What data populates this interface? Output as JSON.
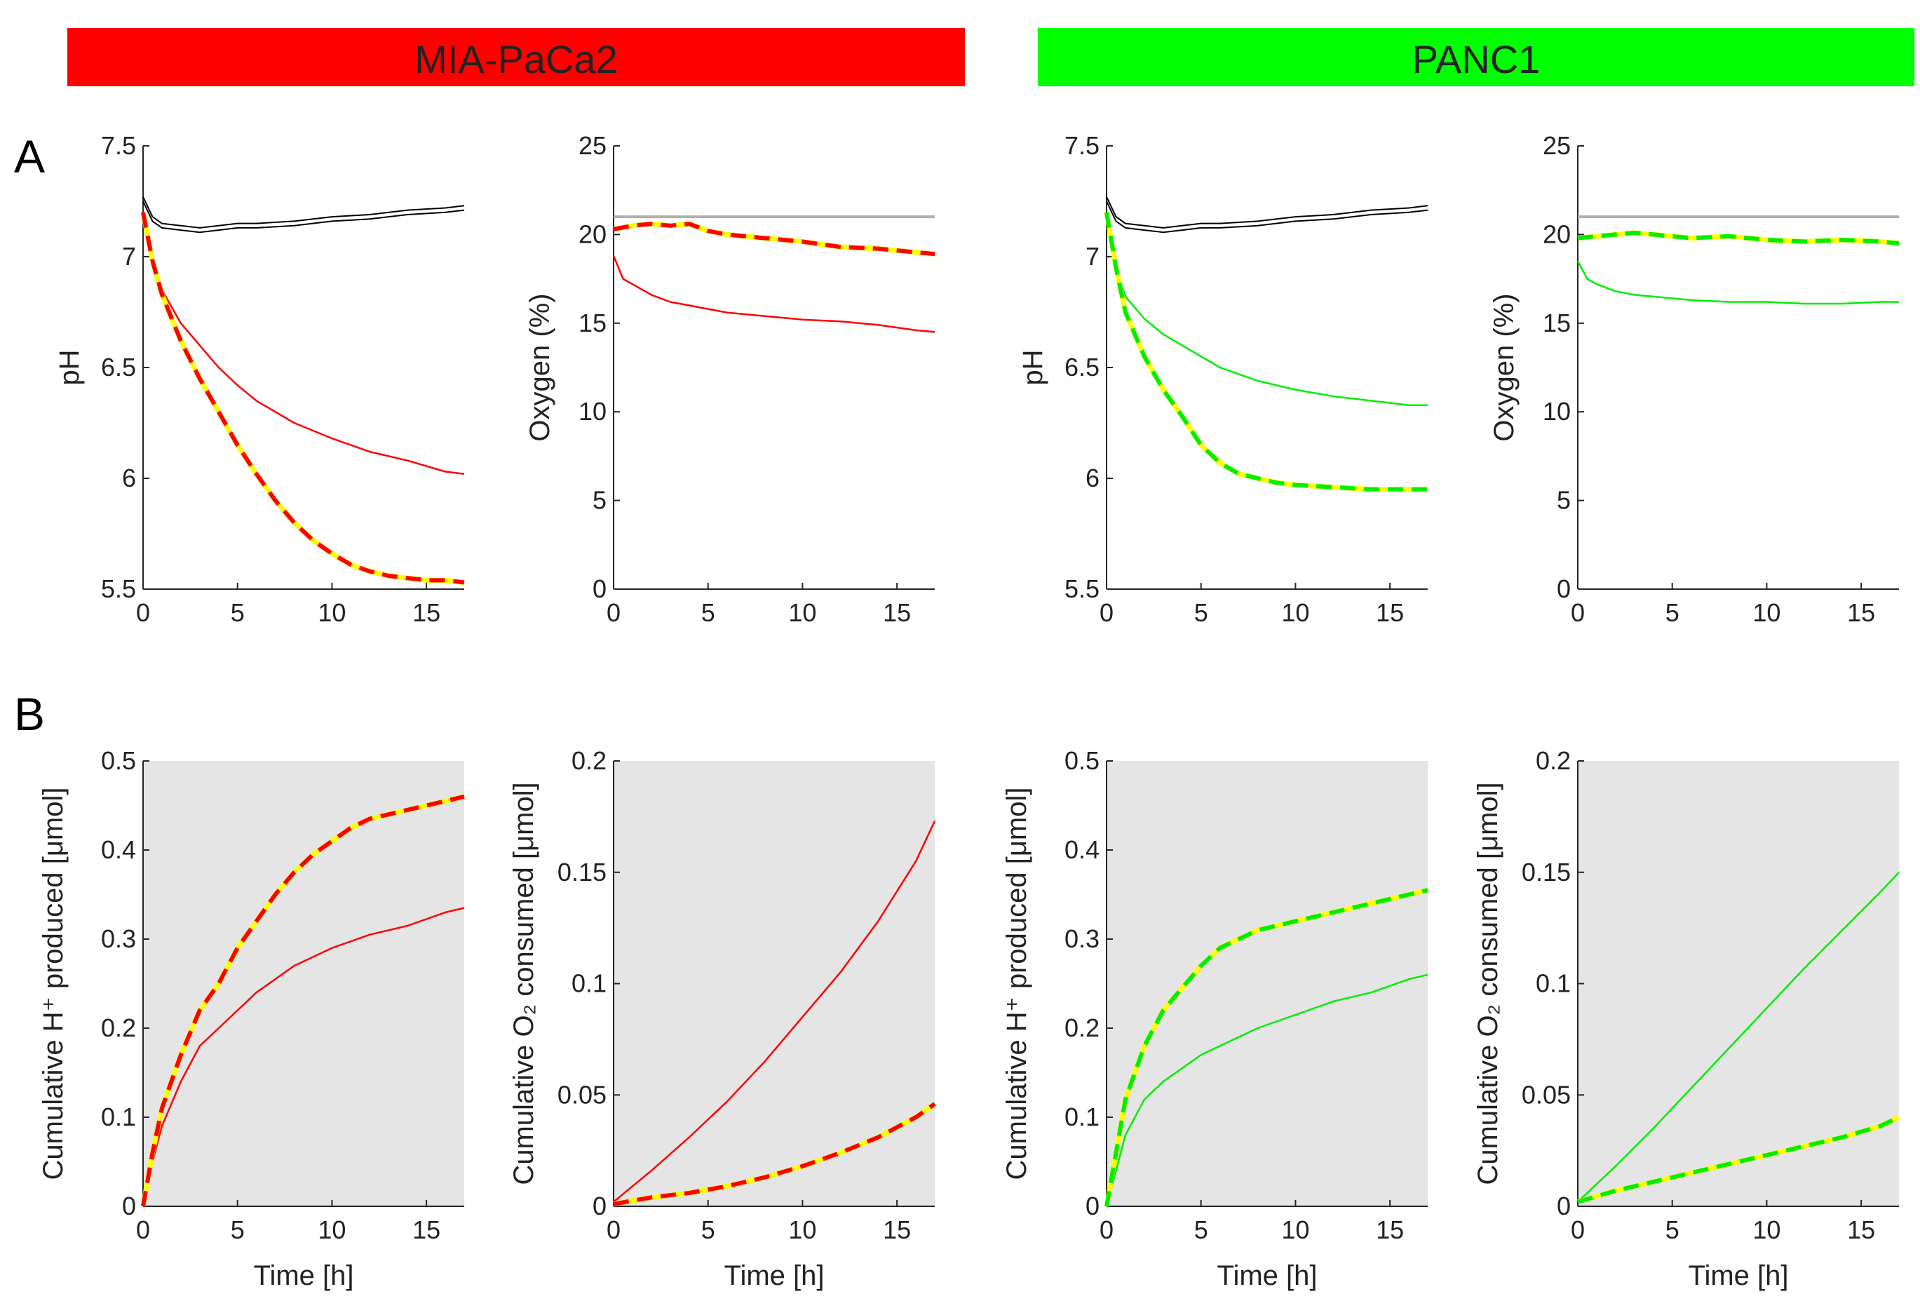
{
  "banners": [
    {
      "label": "MIA-PaCa2",
      "color": "#ff0000"
    },
    {
      "label": "PANC1",
      "color": "#00ff00"
    }
  ],
  "panel_letters": [
    "A",
    "B"
  ],
  "colors": {
    "mia": "#ff0000",
    "panc": "#00ee00",
    "fit": "#ffff00",
    "control": "#000000",
    "ambient": "#b0b0b0",
    "bg_b": "#e5e5e5"
  },
  "chart_data": [
    {
      "id": "mia-ph",
      "type": "line",
      "cell": "MIA-PaCa2",
      "row": "A",
      "xlabel": "",
      "ylabel": "pH",
      "xlim": [
        0,
        17
      ],
      "ylim": [
        5.5,
        7.5
      ],
      "xticks": [
        "0",
        "5",
        "10",
        "15"
      ],
      "yticks": [
        "5.5",
        "6",
        "6.5",
        "7",
        "7.5"
      ],
      "shaded": false,
      "series": [
        {
          "name": "control",
          "style": "control",
          "x": [
            0,
            0.5,
            1,
            2,
            3,
            4,
            5,
            6,
            8,
            10,
            12,
            14,
            16,
            17
          ],
          "y": [
            7.25,
            7.16,
            7.13,
            7.12,
            7.11,
            7.12,
            7.13,
            7.13,
            7.14,
            7.16,
            7.17,
            7.19,
            7.2,
            7.21
          ]
        },
        {
          "name": "solid",
          "style": "solid",
          "x": [
            0,
            0.5,
            1,
            2,
            3,
            4,
            5,
            6,
            8,
            10,
            12,
            14,
            16,
            17
          ],
          "y": [
            7.2,
            6.98,
            6.85,
            6.7,
            6.6,
            6.5,
            6.42,
            6.35,
            6.25,
            6.18,
            6.12,
            6.08,
            6.03,
            6.02
          ]
        },
        {
          "name": "dashed",
          "style": "dashed",
          "x": [
            0,
            0.5,
            1,
            2,
            3,
            4,
            5,
            6,
            7,
            8,
            9,
            10,
            11,
            12,
            13,
            14,
            15,
            16,
            17
          ],
          "y": [
            7.2,
            6.98,
            6.83,
            6.62,
            6.45,
            6.3,
            6.15,
            6.02,
            5.9,
            5.8,
            5.72,
            5.66,
            5.61,
            5.58,
            5.56,
            5.55,
            5.54,
            5.54,
            5.53
          ]
        }
      ]
    },
    {
      "id": "mia-o2",
      "type": "line",
      "cell": "MIA-PaCa2",
      "row": "A",
      "xlabel": "",
      "ylabel": "Oxygen (%)",
      "xlim": [
        0,
        17
      ],
      "ylim": [
        0,
        25
      ],
      "xticks": [
        "0",
        "5",
        "10",
        "15"
      ],
      "yticks": [
        "0",
        "5",
        "10",
        "15",
        "20",
        "25"
      ],
      "shaded": false,
      "series": [
        {
          "name": "ambient",
          "style": "ambient",
          "x": [
            0,
            17
          ],
          "y": [
            21,
            21
          ]
        },
        {
          "name": "solid",
          "style": "solid",
          "x": [
            0,
            0.5,
            1,
            2,
            3,
            4,
            5,
            6,
            8,
            10,
            12,
            14,
            16,
            17
          ],
          "y": [
            18.8,
            17.5,
            17.2,
            16.6,
            16.2,
            16.0,
            15.8,
            15.6,
            15.4,
            15.2,
            15.1,
            14.9,
            14.6,
            14.5
          ]
        },
        {
          "name": "dashed",
          "style": "dashed",
          "x": [
            0,
            1,
            2,
            3,
            4,
            5,
            6,
            8,
            10,
            12,
            14,
            16,
            17
          ],
          "y": [
            20.3,
            20.5,
            20.6,
            20.5,
            20.6,
            20.2,
            20.0,
            19.8,
            19.6,
            19.3,
            19.2,
            19.0,
            18.9
          ]
        }
      ]
    },
    {
      "id": "panc-ph",
      "type": "line",
      "cell": "PANC1",
      "row": "A",
      "xlabel": "",
      "ylabel": "pH",
      "xlim": [
        0,
        17
      ],
      "ylim": [
        5.5,
        7.5
      ],
      "xticks": [
        "0",
        "5",
        "10",
        "15"
      ],
      "yticks": [
        "5.5",
        "6",
        "6.5",
        "7",
        "7.5"
      ],
      "shaded": false,
      "series": [
        {
          "name": "control",
          "style": "control",
          "x": [
            0,
            0.5,
            1,
            2,
            3,
            4,
            5,
            6,
            8,
            10,
            12,
            14,
            16,
            17
          ],
          "y": [
            7.25,
            7.16,
            7.13,
            7.12,
            7.11,
            7.12,
            7.13,
            7.13,
            7.14,
            7.16,
            7.17,
            7.19,
            7.2,
            7.21
          ]
        },
        {
          "name": "solid",
          "style": "solid",
          "x": [
            0,
            0.5,
            1,
            2,
            3,
            4,
            5,
            6,
            8,
            10,
            12,
            14,
            16,
            17
          ],
          "y": [
            7.2,
            6.95,
            6.82,
            6.72,
            6.65,
            6.6,
            6.55,
            6.5,
            6.44,
            6.4,
            6.37,
            6.35,
            6.33,
            6.33
          ]
        },
        {
          "name": "dashed",
          "style": "dashed",
          "x": [
            0,
            0.5,
            1,
            2,
            3,
            4,
            5,
            6,
            7,
            8,
            9,
            10,
            12,
            14,
            16,
            17
          ],
          "y": [
            7.2,
            6.95,
            6.75,
            6.55,
            6.4,
            6.28,
            6.15,
            6.07,
            6.02,
            6.0,
            5.98,
            5.97,
            5.96,
            5.95,
            5.95,
            5.95
          ]
        }
      ]
    },
    {
      "id": "panc-o2",
      "type": "line",
      "cell": "PANC1",
      "row": "A",
      "xlabel": "",
      "ylabel": "Oxygen (%)",
      "xlim": [
        0,
        17
      ],
      "ylim": [
        0,
        25
      ],
      "xticks": [
        "0",
        "5",
        "10",
        "15"
      ],
      "yticks": [
        "0",
        "5",
        "10",
        "15",
        "20",
        "25"
      ],
      "shaded": false,
      "series": [
        {
          "name": "ambient",
          "style": "ambient",
          "x": [
            0,
            17
          ],
          "y": [
            21,
            21
          ]
        },
        {
          "name": "solid",
          "style": "solid",
          "x": [
            0,
            0.5,
            1,
            2,
            3,
            4,
            5,
            6,
            8,
            10,
            12,
            14,
            16,
            17
          ],
          "y": [
            18.5,
            17.5,
            17.2,
            16.8,
            16.6,
            16.5,
            16.4,
            16.3,
            16.2,
            16.2,
            16.1,
            16.1,
            16.2,
            16.2
          ]
        },
        {
          "name": "dashed",
          "style": "dashed",
          "x": [
            0,
            1,
            2,
            3,
            4,
            5,
            6,
            8,
            10,
            12,
            14,
            16,
            17
          ],
          "y": [
            19.8,
            19.9,
            20.0,
            20.1,
            20.0,
            19.9,
            19.8,
            19.9,
            19.7,
            19.6,
            19.7,
            19.6,
            19.5
          ]
        }
      ]
    },
    {
      "id": "mia-h",
      "type": "line",
      "cell": "MIA-PaCa2",
      "row": "B",
      "xlabel": "Time [h]",
      "ylabel": "Cumulative H⁺ produced [μmol]",
      "xlim": [
        0,
        17
      ],
      "ylim": [
        0,
        0.5
      ],
      "xticks": [
        "0",
        "5",
        "10",
        "15"
      ],
      "yticks": [
        "0",
        "0.1",
        "0.2",
        "0.3",
        "0.4",
        "0.5"
      ],
      "shaded": true,
      "series": [
        {
          "name": "solid",
          "style": "solid",
          "x": [
            0,
            0.5,
            1,
            2,
            3,
            4,
            5,
            6,
            8,
            10,
            12,
            14,
            16,
            17
          ],
          "y": [
            0,
            0.05,
            0.09,
            0.14,
            0.18,
            0.2,
            0.22,
            0.24,
            0.27,
            0.29,
            0.305,
            0.315,
            0.33,
            0.335
          ]
        },
        {
          "name": "dashed",
          "style": "dashed",
          "x": [
            0,
            0.5,
            1,
            2,
            3,
            4,
            5,
            6,
            7,
            8,
            9,
            10,
            11,
            12,
            13,
            14,
            15,
            16,
            17
          ],
          "y": [
            0,
            0.06,
            0.11,
            0.17,
            0.22,
            0.25,
            0.29,
            0.32,
            0.35,
            0.375,
            0.395,
            0.41,
            0.425,
            0.435,
            0.44,
            0.445,
            0.45,
            0.455,
            0.46
          ]
        }
      ]
    },
    {
      "id": "mia-o2c",
      "type": "line",
      "cell": "MIA-PaCa2",
      "row": "B",
      "xlabel": "Time [h]",
      "ylabel": "Cumulative O₂ consumed [μmol]",
      "xlim": [
        0,
        17
      ],
      "ylim": [
        0,
        0.2
      ],
      "xticks": [
        "0",
        "5",
        "10",
        "15"
      ],
      "yticks": [
        "0",
        "0.05",
        "0.1",
        "0.15",
        "0.2"
      ],
      "shaded": true,
      "series": [
        {
          "name": "solid",
          "style": "solid",
          "x": [
            0,
            2,
            4,
            6,
            8,
            10,
            12,
            14,
            16,
            17
          ],
          "y": [
            0.002,
            0.016,
            0.031,
            0.047,
            0.065,
            0.085,
            0.105,
            0.128,
            0.155,
            0.173
          ]
        },
        {
          "name": "dashed",
          "style": "dashed",
          "x": [
            0,
            2,
            4,
            6,
            8,
            10,
            12,
            14,
            16,
            17
          ],
          "y": [
            0.001,
            0.004,
            0.006,
            0.009,
            0.013,
            0.018,
            0.024,
            0.031,
            0.04,
            0.046
          ]
        }
      ]
    },
    {
      "id": "panc-h",
      "type": "line",
      "cell": "PANC1",
      "row": "B",
      "xlabel": "Time [h]",
      "ylabel": "Cumulative H⁺ produced [μmol]",
      "xlim": [
        0,
        17
      ],
      "ylim": [
        0,
        0.5
      ],
      "xticks": [
        "0",
        "5",
        "10",
        "15"
      ],
      "yticks": [
        "0",
        "0.1",
        "0.2",
        "0.3",
        "0.4",
        "0.5"
      ],
      "shaded": true,
      "series": [
        {
          "name": "solid",
          "style": "solid",
          "x": [
            0,
            0.5,
            1,
            2,
            3,
            4,
            5,
            6,
            8,
            10,
            12,
            14,
            16,
            17
          ],
          "y": [
            0,
            0.04,
            0.08,
            0.12,
            0.14,
            0.155,
            0.17,
            0.18,
            0.2,
            0.215,
            0.23,
            0.24,
            0.255,
            0.26
          ]
        },
        {
          "name": "dashed",
          "style": "dashed",
          "x": [
            0,
            0.5,
            1,
            2,
            3,
            4,
            5,
            6,
            7,
            8,
            10,
            12,
            14,
            16,
            17
          ],
          "y": [
            0,
            0.06,
            0.12,
            0.18,
            0.22,
            0.245,
            0.27,
            0.29,
            0.3,
            0.31,
            0.32,
            0.33,
            0.34,
            0.35,
            0.355
          ]
        }
      ]
    },
    {
      "id": "panc-o2c",
      "type": "line",
      "cell": "PANC1",
      "row": "B",
      "xlabel": "Time [h]",
      "ylabel": "Cumulative O₂ consumed [μmol]",
      "xlim": [
        0,
        17
      ],
      "ylim": [
        0,
        0.2
      ],
      "xticks": [
        "0",
        "5",
        "10",
        "15"
      ],
      "yticks": [
        "0",
        "0.05",
        "0.1",
        "0.15",
        "0.2"
      ],
      "shaded": true,
      "series": [
        {
          "name": "solid",
          "style": "solid",
          "x": [
            0,
            2,
            4,
            6,
            8,
            10,
            12,
            14,
            16,
            17
          ],
          "y": [
            0.002,
            0.018,
            0.035,
            0.053,
            0.071,
            0.089,
            0.107,
            0.124,
            0.141,
            0.15
          ]
        },
        {
          "name": "dashed",
          "style": "dashed",
          "x": [
            0,
            2,
            4,
            6,
            8,
            10,
            12,
            14,
            16,
            17
          ],
          "y": [
            0.002,
            0.007,
            0.011,
            0.015,
            0.019,
            0.023,
            0.027,
            0.031,
            0.036,
            0.04
          ]
        }
      ]
    }
  ]
}
